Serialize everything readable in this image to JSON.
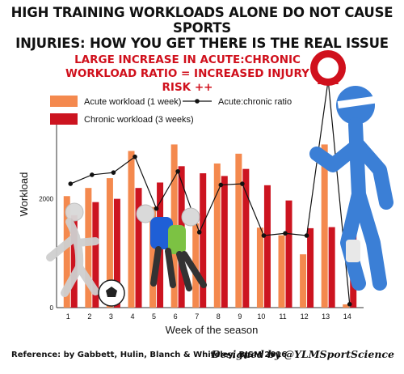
{
  "headline": {
    "line1": "HIGH TRAINING WORKLOADS ALONE DO NOT CAUSE SPORTS",
    "line2": "INJURIES: HOW YOU GET THERE IS THE REAL ISSUE"
  },
  "callout": {
    "line1": "LARGE INCREASE IN ACUTE:CHRONIC",
    "line2": "WORKLOAD RATIO = INCREASED INJURY RISK ++"
  },
  "footer": {
    "reference": "Reference: by Gabbett, Hulin, Blanch & Whiteley, BJSM 2016",
    "credit": "Designed by @YLMSportScience"
  },
  "chart_data": {
    "type": "bar",
    "categories": [
      "1",
      "2",
      "3",
      "4",
      "5",
      "6",
      "7",
      "8",
      "9",
      "10",
      "11",
      "12",
      "13",
      "14"
    ],
    "series": [
      {
        "name": "Acute workload (1 week)",
        "kind": "bar",
        "color": "#f4894e",
        "values": [
          2050,
          2200,
          2380,
          2880,
          1850,
          3000,
          1550,
          2650,
          2830,
          1470,
          1330,
          980,
          3000,
          60
        ]
      },
      {
        "name": "Chronic workload (3 weeks)",
        "kind": "bar",
        "color": "#cc1420",
        "values": [
          1700,
          1940,
          2000,
          2200,
          2300,
          2600,
          2470,
          2420,
          2550,
          2250,
          1970,
          1460,
          1480,
          1450
        ]
      },
      {
        "name": "Acute:chronic ratio",
        "kind": "line",
        "color": "#111111",
        "values": [
          1.1,
          1.18,
          1.2,
          1.34,
          0.88,
          1.21,
          0.67,
          1.09,
          1.1,
          0.64,
          0.66,
          0.64,
          2.02,
          0.03
        ]
      }
    ],
    "xlabel": "Week of the season",
    "ylabel": "Workload",
    "yticks": [
      0,
      2000
    ],
    "ylim": [
      0,
      3200
    ],
    "ratio_range": [
      0,
      2.1
    ],
    "grid": false,
    "legend": "top-left"
  }
}
